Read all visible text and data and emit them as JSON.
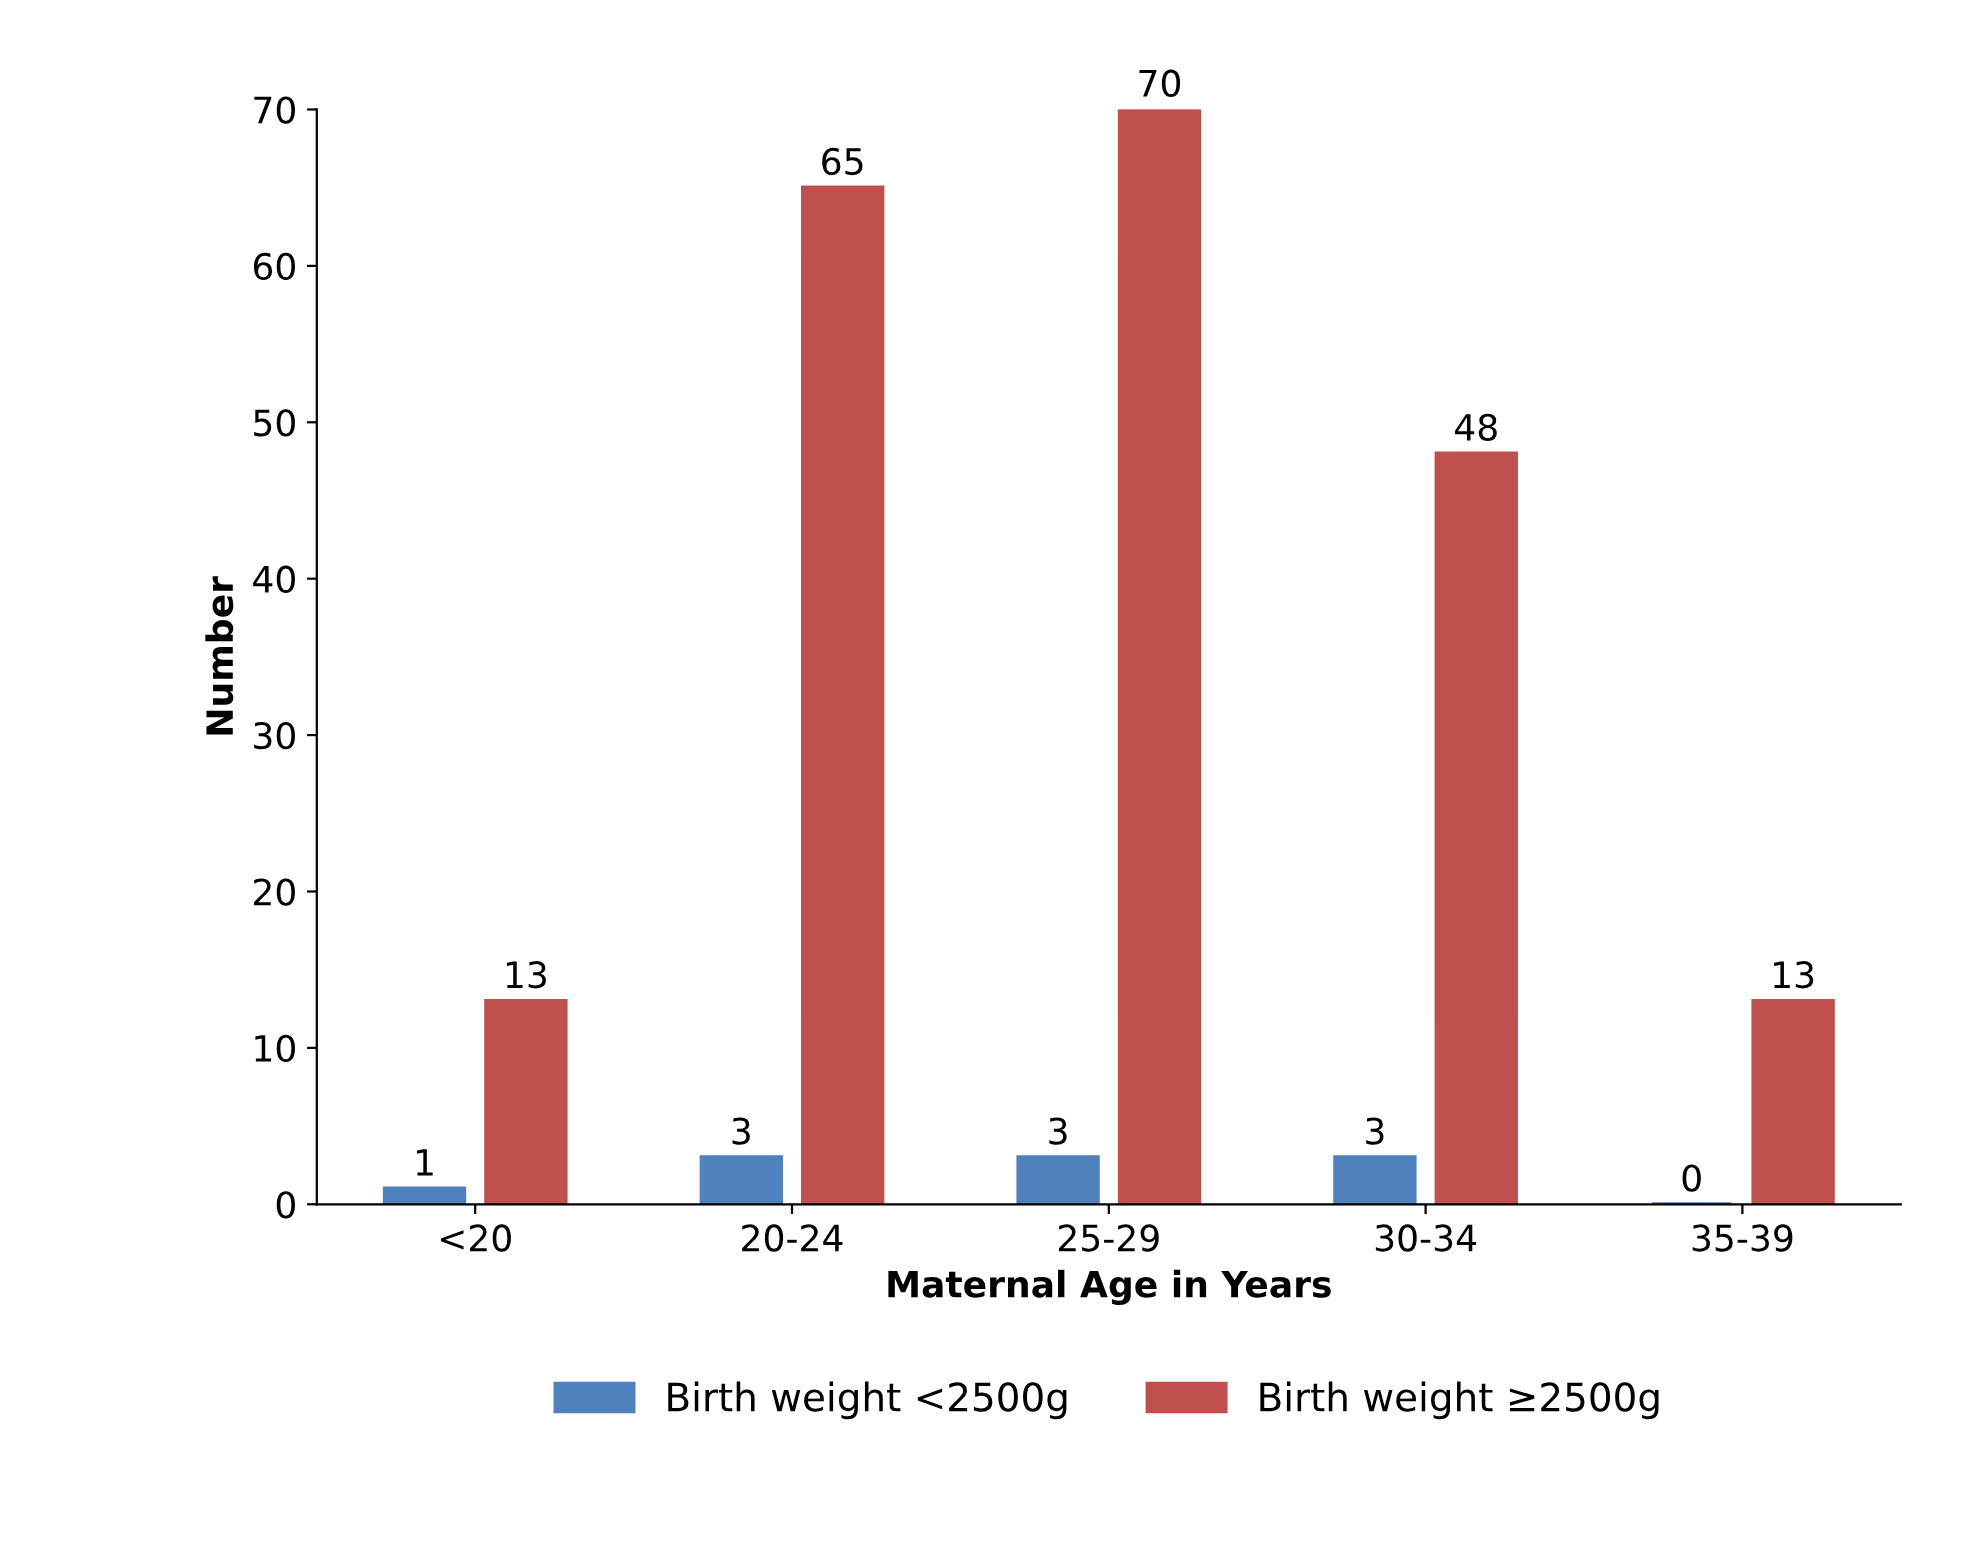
{
  "chart_data": {
    "type": "bar",
    "xlabel": "Maternal Age in Years",
    "ylabel": "Number",
    "categories": [
      "<20",
      "20-24",
      "25-29",
      "30-34",
      "35-39"
    ],
    "series": [
      {
        "name": "Birth weight <2500g",
        "color": "#4f81bd",
        "values": [
          1,
          3,
          3,
          3,
          0
        ]
      },
      {
        "name": "Birth weight ≥2500g",
        "color": "#c0504d",
        "values": [
          13,
          65,
          70,
          48,
          13
        ]
      }
    ],
    "ylim": [
      0,
      70
    ],
    "yticks": [
      0,
      10,
      20,
      30,
      40,
      50,
      60,
      70
    ],
    "grid": false,
    "legend": "bottom",
    "data_labels": true
  }
}
